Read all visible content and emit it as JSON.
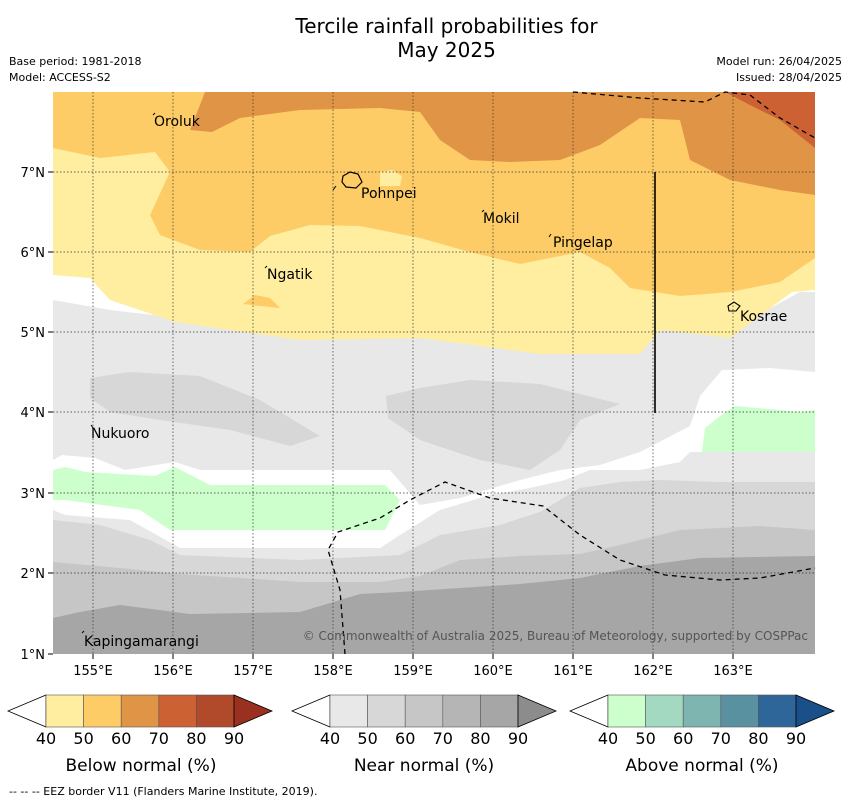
{
  "title": {
    "line1": "Tercile rainfall probabilities for",
    "line2": "May 2025"
  },
  "meta": {
    "base_period": "Base period: 1981-2018",
    "model": "Model: ACCESS-S2",
    "model_run": "Model run: 26/04/2025",
    "issued": "Issued: 28/04/2025"
  },
  "map": {
    "lon_labels": [
      "155°E",
      "156°E",
      "157°E",
      "158°E",
      "159°E",
      "160°E",
      "161°E",
      "162°E",
      "163°E"
    ],
    "lat_labels": [
      "7°N",
      "6°N",
      "5°N",
      "4°N",
      "3°N",
      "2°N",
      "1°N"
    ],
    "places": [
      {
        "name": "Oroluk"
      },
      {
        "name": "Pohnpei"
      },
      {
        "name": "Mokil"
      },
      {
        "name": "Pingelap"
      },
      {
        "name": "Ngatik"
      },
      {
        "name": "Kosrae"
      },
      {
        "name": "Nukuoro"
      },
      {
        "name": "Kapingamarangi"
      }
    ],
    "copyright": "© Commonwealth of Australia 2025, Bureau of Meteorology, supported by COSPPac"
  },
  "colorbars": [
    {
      "label": "Below normal (%)",
      "ticks": [
        "40",
        "50",
        "60",
        "70",
        "80",
        "90"
      ],
      "colors": [
        "#ffeda0",
        "#fecc66",
        "#e09445",
        "#cc6233",
        "#b04a2b",
        "#9a3020"
      ]
    },
    {
      "label": "Near normal (%)",
      "ticks": [
        "40",
        "50",
        "60",
        "70",
        "80",
        "90"
      ],
      "colors": [
        "#e8e8e8",
        "#d7d7d7",
        "#c6c6c6",
        "#b5b5b5",
        "#a6a6a6",
        "#8c8c8c"
      ]
    },
    {
      "label": "Above normal (%)",
      "ticks": [
        "40",
        "50",
        "60",
        "70",
        "80",
        "90"
      ],
      "colors": [
        "#ccffcc",
        "#a3d9c0",
        "#7fb5b0",
        "#5a91a0",
        "#2f6699",
        "#1a4f8a"
      ]
    }
  ],
  "footnote": "--  --  -- EEZ border V11 (Flanders Marine Institute, 2019)."
}
